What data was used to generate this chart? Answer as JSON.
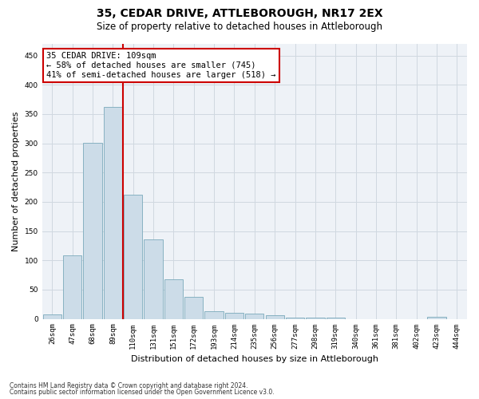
{
  "title1": "35, CEDAR DRIVE, ATTLEBOROUGH, NR17 2EX",
  "title2": "Size of property relative to detached houses in Attleborough",
  "xlabel": "Distribution of detached houses by size in Attleborough",
  "ylabel": "Number of detached properties",
  "footnote1": "Contains HM Land Registry data © Crown copyright and database right 2024.",
  "footnote2": "Contains public sector information licensed under the Open Government Licence v3.0.",
  "bar_labels": [
    "26sqm",
    "47sqm",
    "68sqm",
    "89sqm",
    "110sqm",
    "131sqm",
    "151sqm",
    "172sqm",
    "193sqm",
    "214sqm",
    "235sqm",
    "256sqm",
    "277sqm",
    "298sqm",
    "319sqm",
    "340sqm",
    "361sqm",
    "381sqm",
    "402sqm",
    "423sqm",
    "444sqm"
  ],
  "bar_values": [
    8,
    108,
    301,
    362,
    212,
    136,
    68,
    38,
    13,
    10,
    9,
    6,
    2,
    2,
    2,
    0,
    0,
    0,
    0,
    3,
    0
  ],
  "bar_color": "#ccdce8",
  "bar_edge_color": "#7aaabb",
  "grid_color": "#d0d8e0",
  "red_line_color": "#cc0000",
  "annotation_line1": "35 CEDAR DRIVE: 109sqm",
  "annotation_line2": "← 58% of detached houses are smaller (745)",
  "annotation_line3": "41% of semi-detached houses are larger (518) →",
  "annotation_box_facecolor": "#ffffff",
  "annotation_box_edgecolor": "#cc0000",
  "ylim": [
    0,
    470
  ],
  "yticks": [
    0,
    50,
    100,
    150,
    200,
    250,
    300,
    350,
    400,
    450
  ],
  "background_color": "#ffffff",
  "plot_bg_color": "#eef2f7",
  "title1_fontsize": 10,
  "title2_fontsize": 8.5,
  "xlabel_fontsize": 8,
  "ylabel_fontsize": 8,
  "tick_fontsize": 6.5,
  "footnote_fontsize": 5.5
}
